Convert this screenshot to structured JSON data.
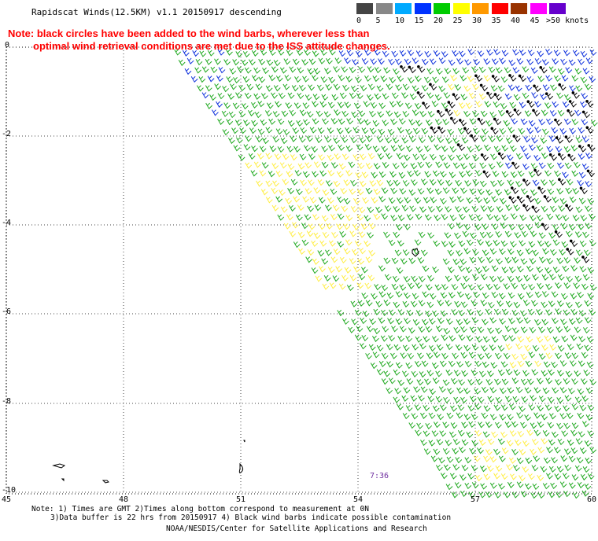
{
  "header": {
    "title": "Rapidscat Winds(12.5KM) v1.1 20150917 descending",
    "note_line1": "Note: black circles have been added to the wind barbs, wherever less than",
    "note_line2": "optimal wind retrieval conditions are met due to the ISS attitude changes."
  },
  "legend": {
    "bins": [
      {
        "label": "0",
        "color": "#444444"
      },
      {
        "label": "5",
        "color": "#888888"
      },
      {
        "label": "10",
        "color": "#00aaff"
      },
      {
        "label": "15",
        "color": "#0033ff"
      },
      {
        "label": "20",
        "color": "#00cc00"
      },
      {
        "label": "25",
        "color": "#ffff00"
      },
      {
        "label": "30",
        "color": "#ff9900"
      },
      {
        "label": "35",
        "color": "#ff0000"
      },
      {
        "label": "40",
        "color": "#993300"
      },
      {
        "label": "45",
        "color": "#ff00ff"
      },
      {
        "label": ">50 knots",
        "color": "#6600cc"
      }
    ]
  },
  "axes": {
    "x_ticks": [
      "45",
      "48",
      "51",
      "54",
      "57",
      "60"
    ],
    "y_ticks": [
      "0",
      "-2",
      "-4",
      "-6",
      "-8",
      "-10"
    ]
  },
  "overlay_time": "7:36",
  "footer": {
    "line1": "Note: 1) Times are GMT 2)Times along bottom correspond to measurement at 0N",
    "line2": "3)Data buffer is 22 hrs from 20150917 4) Black wind barbs indicate possible contamination",
    "line3": "NOAA/NESDIS/Center for Satellite Applications and Research"
  },
  "colors": {
    "barb_green": "#22aa22",
    "barb_yellow": "#ffee44",
    "barb_blue": "#1133dd",
    "barb_black": "#000000",
    "grid": "#444444"
  }
}
